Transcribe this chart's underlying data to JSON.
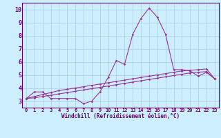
{
  "x": [
    0,
    1,
    2,
    3,
    4,
    5,
    6,
    7,
    8,
    9,
    10,
    11,
    12,
    13,
    14,
    15,
    16,
    17,
    18,
    19,
    20,
    21,
    22,
    23
  ],
  "line1": [
    3.2,
    3.7,
    3.7,
    3.2,
    3.2,
    3.2,
    3.2,
    2.8,
    3.0,
    3.7,
    4.8,
    6.1,
    5.8,
    8.1,
    9.3,
    10.1,
    9.4,
    8.1,
    5.4,
    5.4,
    5.3,
    4.9,
    5.2,
    4.7
  ],
  "line2": [
    3.2,
    3.35,
    3.5,
    3.65,
    3.8,
    3.9,
    4.0,
    4.1,
    4.2,
    4.3,
    4.4,
    4.5,
    4.6,
    4.7,
    4.8,
    4.9,
    5.0,
    5.1,
    5.2,
    5.3,
    5.35,
    5.4,
    5.45,
    4.7
  ],
  "line3": [
    3.2,
    3.25,
    3.35,
    3.45,
    3.55,
    3.65,
    3.75,
    3.85,
    3.95,
    4.05,
    4.15,
    4.25,
    4.35,
    4.45,
    4.55,
    4.65,
    4.75,
    4.85,
    4.95,
    5.05,
    5.15,
    5.2,
    5.25,
    4.7
  ],
  "line_color": "#993399",
  "bg_color": "#cceeff",
  "grid_color": "#aaccdd",
  "axis_color": "#660066",
  "xlabel": "Windchill (Refroidissement éolien,°C)",
  "xlim": [
    -0.5,
    23.5
  ],
  "ylim": [
    2.5,
    10.5
  ],
  "yticks": [
    3,
    4,
    5,
    6,
    7,
    8,
    9,
    10
  ],
  "xticks": [
    0,
    1,
    2,
    3,
    4,
    5,
    6,
    7,
    8,
    9,
    10,
    11,
    12,
    13,
    14,
    15,
    16,
    17,
    18,
    19,
    20,
    21,
    22,
    23
  ],
  "markersize": 1.8,
  "linewidth": 0.8
}
